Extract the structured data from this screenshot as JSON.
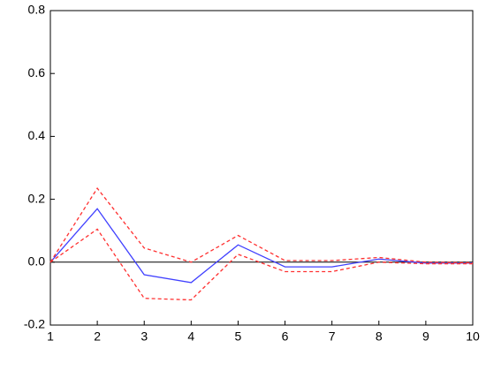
{
  "chart_data": {
    "type": "line",
    "x": [
      1,
      2,
      3,
      4,
      5,
      6,
      7,
      8,
      9,
      10
    ],
    "series": [
      {
        "color": "#4040ff",
        "dashed": false,
        "values": [
          0,
          0.17,
          -0.04,
          -0.065,
          0.055,
          -0.015,
          -0.015,
          0.01,
          -0.003,
          -0.003
        ]
      },
      {
        "color": "#ff3030",
        "dashed": true,
        "values": [
          0,
          0.235,
          0.045,
          0.0,
          0.085,
          0.005,
          0.005,
          0.015,
          0.0,
          -0.002
        ]
      },
      {
        "color": "#ff3030",
        "dashed": true,
        "values": [
          0,
          0.105,
          -0.115,
          -0.12,
          0.025,
          -0.03,
          -0.03,
          0.0,
          -0.005,
          -0.005
        ]
      }
    ],
    "xlim": [
      1,
      10
    ],
    "xticks": [
      1,
      2,
      3,
      4,
      5,
      6,
      7,
      8,
      9,
      10
    ],
    "ylim": [
      -0.2,
      0.8
    ],
    "yticks": [
      -0.2,
      {
        "value": 0,
        "label": "0.0"
      },
      0.2,
      0.4,
      0.6,
      0.8
    ],
    "zero_line": true
  }
}
